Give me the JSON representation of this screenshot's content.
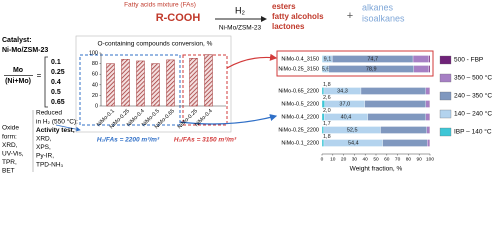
{
  "reaction": {
    "feed_note": "Fatty acids mixture (FAs)",
    "reactant": "R-COOH",
    "reagent": "H₂",
    "catalyst": "Ni-Mo/ZSM-23",
    "oxygenates": [
      "esters",
      "fatty alcohols",
      "lactones"
    ],
    "plus": "+",
    "hydrocarbons": [
      "alkanes",
      "isoalkanes"
    ]
  },
  "catalyst": {
    "label": "Catalyst:",
    "name": "Ni-Mo/ZSM-23",
    "ratio_numerator": "Mo",
    "ratio_denominator": "(Ni+Mo)",
    "equals": "=",
    "ratios": [
      "0.1",
      "0.25",
      "0.4",
      "0.5",
      "0.65"
    ]
  },
  "characterization": {
    "oxide": [
      "Oxide",
      "form:",
      "XRD,",
      "UV-Vis,",
      "TPR,",
      "BET"
    ],
    "reduced": [
      "Reduced",
      "in H₂ (550 °C):",
      "Activity test,",
      "XRD,",
      "XPS,",
      "Py-IR,",
      "TPD-NH₃"
    ]
  },
  "chart_data": [
    {
      "type": "bar",
      "title": "O-containing compounds conversion, %",
      "ylim": [
        0,
        100
      ],
      "yticks": [
        0,
        20,
        40,
        60,
        80,
        100
      ],
      "color": "#a33a3a",
      "groups": [
        {
          "label": "H₂/FAs = 2200 m³/m³",
          "color": "#2f6fc7",
          "categories": [
            "NiMo-0.1",
            "NiMo-0.25",
            "NiMo-0.4",
            "NiMo-0.5",
            "NiMo-0.65"
          ],
          "values": [
            80,
            88,
            85,
            80,
            87
          ]
        },
        {
          "label": "H₂/FAs = 3150 m³/m³",
          "color": "#d23a3a",
          "categories": [
            "NiMo-0.25",
            "NiMo-0.4"
          ],
          "values": [
            90,
            97
          ]
        }
      ]
    },
    {
      "type": "barh",
      "xlabel": "Weight fraction, %",
      "xlim": [
        0,
        100
      ],
      "xticks": [
        0,
        10,
        20,
        30,
        40,
        50,
        60,
        70,
        80,
        90,
        100
      ],
      "legend": "right",
      "categories": [
        "NiMo-0.4_3150",
        "NiMo-0.25_3150",
        "NiMo-0.65_2200",
        "NiMo-0.5_2200",
        "NiMo-0.4_2200",
        "NiMo-0.25_2200",
        "NiMo-0.1_2200"
      ],
      "series": [
        {
          "name": "IBP – 140 °C",
          "color": "#3ec6d6",
          "values": [
            0.5,
            0.5,
            1.8,
            2.6,
            2.0,
            1.7,
            1.8
          ],
          "value_labels": [
            null,
            null,
            "1,8",
            "2,6",
            "2,0",
            "1,7",
            "1,8"
          ]
        },
        {
          "name": "140 – 240 °C",
          "color": "#b3d3ee",
          "values": [
            9.1,
            5.6,
            34.3,
            37.0,
            40.4,
            52.5,
            54.4
          ],
          "value_labels": [
            "9,1",
            "5,6",
            "34,3",
            "37,0",
            "40,4",
            "52,5",
            "54,4"
          ]
        },
        {
          "name": "240 – 350 °C",
          "color": "#8098bf",
          "values": [
            74.7,
            78.9,
            59.9,
            56.4,
            53.6,
            42.8,
            41.3
          ],
          "value_labels": [
            "74,7",
            "78,9",
            null,
            null,
            null,
            null,
            null
          ]
        },
        {
          "name": "350 – 500 °C",
          "color": "#a67fc4",
          "values": [
            14.7,
            14.0,
            3.5,
            3.5,
            3.5,
            2.5,
            2.0
          ],
          "value_labels": [
            null,
            null,
            null,
            null,
            null,
            null,
            null
          ]
        },
        {
          "name": "500 - FBP",
          "color": "#6f2379",
          "values": [
            1.0,
            1.0,
            0.5,
            0.5,
            0.5,
            0.5,
            0.5
          ],
          "value_labels": [
            null,
            null,
            null,
            null,
            null,
            null,
            null
          ]
        }
      ]
    }
  ]
}
